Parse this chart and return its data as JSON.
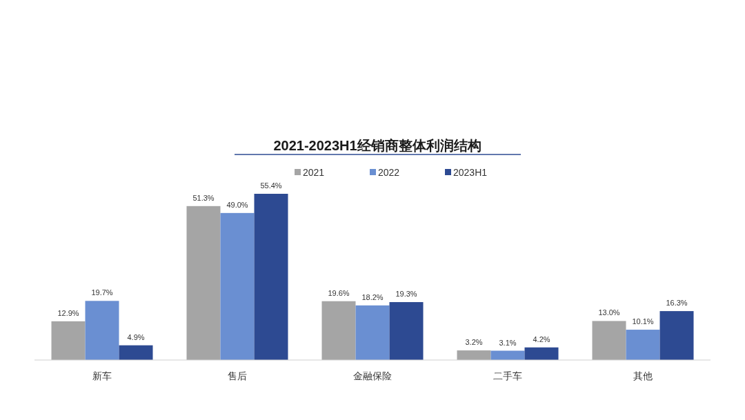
{
  "chart_data": {
    "type": "bar",
    "title": "2021-2023H1经销商整体利润结构",
    "categories": [
      "新车",
      "售后",
      "金融保险",
      "二手车",
      "其他"
    ],
    "series": [
      {
        "name": "2021",
        "color": "#a5a5a5",
        "values": [
          12.9,
          51.3,
          19.6,
          3.2,
          13.0
        ],
        "value_labels": [
          "12.9%",
          "51.3%",
          "19.6%",
          "3.2%",
          "13.0%"
        ]
      },
      {
        "name": "2022",
        "color": "#6a8fd2",
        "values": [
          19.7,
          49.0,
          18.2,
          3.1,
          10.1
        ],
        "value_labels": [
          "19.7%",
          "49.0%",
          "18.2%",
          "3.1%",
          "10.1%"
        ]
      },
      {
        "name": "2023H1",
        "color": "#2d4a92",
        "values": [
          4.9,
          55.4,
          19.3,
          4.2,
          16.3
        ],
        "value_labels": [
          "4.9%",
          "55.4%",
          "19.3%",
          "4.2%",
          "16.3%"
        ]
      }
    ],
    "legend": "top"
  }
}
